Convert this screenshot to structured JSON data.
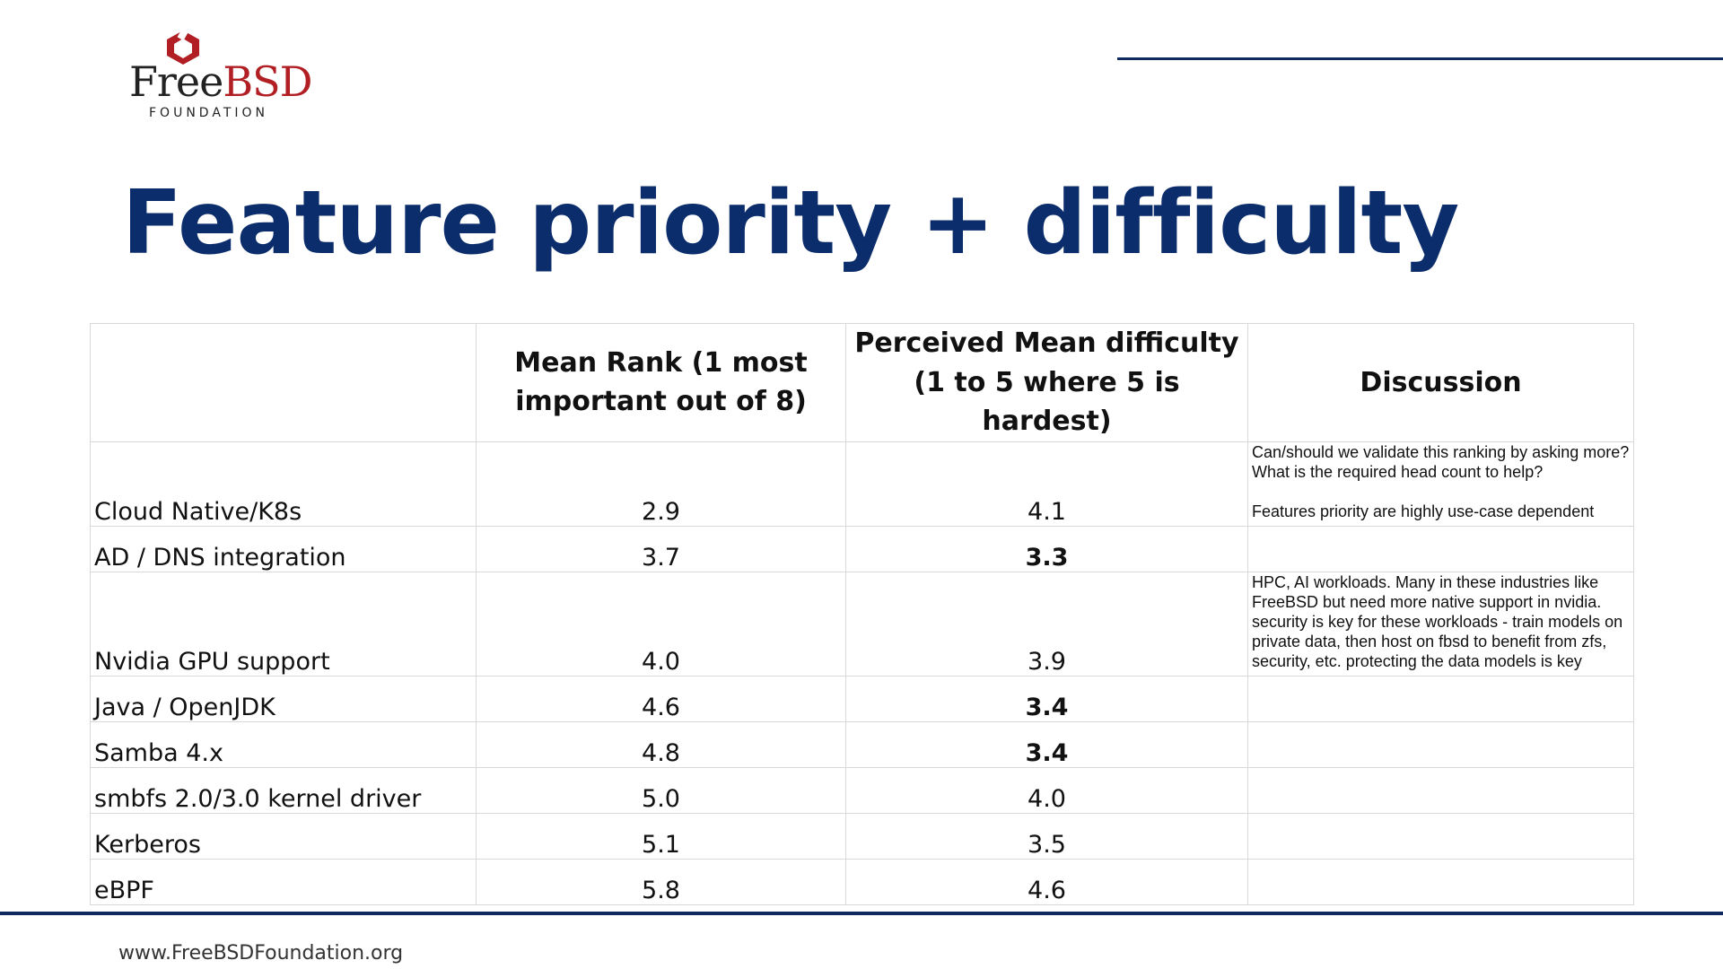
{
  "brand": {
    "logo_text_free": "Free",
    "logo_text_bsd": "BSD",
    "logo_text_foundation": "FOUNDATION",
    "logo_color": "#b11f24",
    "accent_color": "#0b2d6b"
  },
  "slide": {
    "title": "Feature priority + difficulty"
  },
  "table": {
    "headers": {
      "feature": "",
      "mean_rank": "Mean Rank (1 most important out of 8)",
      "difficulty": "Perceived Mean difficulty (1 to 5 where 5 is hardest)",
      "discussion": "Discussion"
    },
    "rows": [
      {
        "feature": "Cloud Native/K8s",
        "rank": "2.9",
        "difficulty": "4.1",
        "discussion_1": "Can/should we validate this ranking by asking more? What is the required head count to help?",
        "discussion_2": "Features priority are highly use-case dependent"
      },
      {
        "feature": "AD / DNS integration",
        "rank": "3.7",
        "difficulty": "3.3"
      },
      {
        "feature": "Nvidia GPU support",
        "rank": "4.0",
        "difficulty": "3.9",
        "discussion_1": "HPC, AI workloads. Many in these industries like FreeBSD but need more native support in nvidia. security is key for these workloads - train models on private data, then host on fbsd to benefit from zfs, security, etc. protecting the data models is key"
      },
      {
        "feature": "Java / OpenJDK",
        "rank": "4.6",
        "difficulty": "3.4"
      },
      {
        "feature": "Samba 4.x",
        "rank": "4.8",
        "difficulty": "3.4"
      },
      {
        "feature": "smbfs 2.0/3.0 kernel driver",
        "rank": "5.0",
        "difficulty": "4.0"
      },
      {
        "feature": "Kerberos",
        "rank": "5.1",
        "difficulty": "3.5"
      },
      {
        "feature": "eBPF",
        "rank": "5.8",
        "difficulty": "4.6"
      }
    ]
  },
  "footer": {
    "url": "www.FreeBSDFoundation.org"
  }
}
